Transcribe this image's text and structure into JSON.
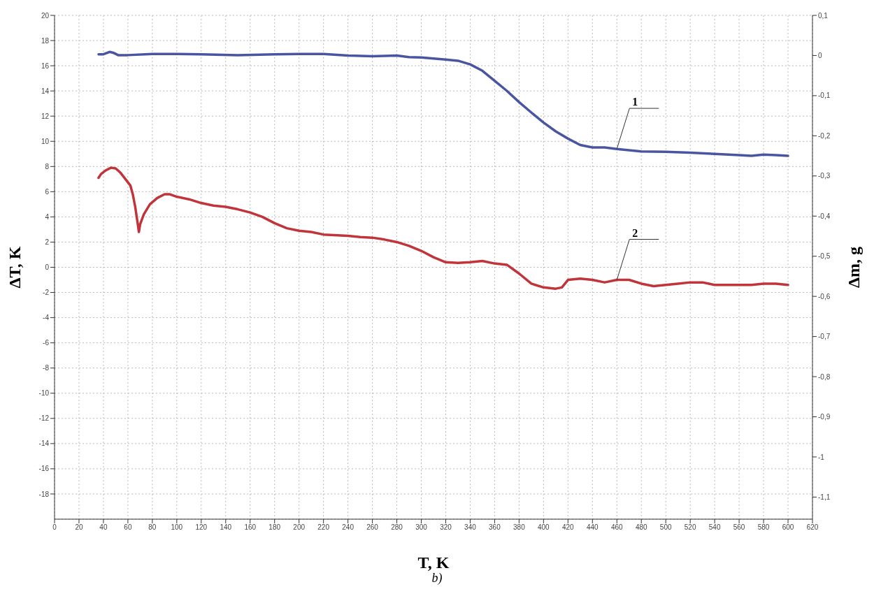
{
  "chart_data": {
    "type": "line",
    "xlabel": "T, K",
    "ylabel": "ΔT, K",
    "y2label": "Δm, g",
    "xlim": [
      0,
      620
    ],
    "xticks": [
      0,
      20,
      40,
      60,
      80,
      100,
      120,
      140,
      160,
      180,
      200,
      220,
      240,
      260,
      280,
      300,
      320,
      340,
      360,
      380,
      400,
      420,
      440,
      460,
      480,
      500,
      520,
      540,
      560,
      580,
      600,
      620
    ],
    "ylim": [
      -20,
      20
    ],
    "yticks": [
      20,
      18,
      16,
      14,
      12,
      10,
      8,
      6,
      4,
      2,
      0,
      -2,
      -4,
      -6,
      -8,
      -10,
      -12,
      -14,
      -16,
      -18
    ],
    "y2lim": [
      -1.155,
      0.1
    ],
    "y2ticks": [
      {
        "value": 0.1,
        "label": "0,1"
      },
      0,
      {
        "value": -0.1,
        "label": "-0,1"
      },
      {
        "value": -0.2,
        "label": "-0,2"
      },
      {
        "value": -0.3,
        "label": "-0,3"
      },
      {
        "value": -0.4,
        "label": "-0,4"
      },
      {
        "value": -0.5,
        "label": "-0,5"
      },
      {
        "value": -0.6,
        "label": "-0,6"
      },
      {
        "value": -0.7,
        "label": "-0,7"
      },
      {
        "value": -0.8,
        "label": "-0,8"
      },
      {
        "value": -0.9,
        "label": "-0,9"
      },
      -1,
      {
        "value": -1.1,
        "label": "-1,1"
      }
    ],
    "grid": true,
    "line_style": "solid",
    "marker": "none",
    "series": [
      {
        "color": "#4a55a2",
        "axis": "y2",
        "x": [
          36,
          40,
          45,
          48,
          52,
          60,
          80,
          100,
          120,
          150,
          180,
          200,
          220,
          240,
          260,
          280,
          290,
          300,
          320,
          330,
          340,
          350,
          360,
          370,
          380,
          390,
          400,
          410,
          420,
          430,
          440,
          450,
          460,
          470,
          480,
          500,
          520,
          540,
          560,
          570,
          580,
          590,
          600
        ],
        "values": [
          0.003,
          0.003,
          0.009,
          0.007,
          0.001,
          0.001,
          0.004,
          0.004,
          0.003,
          0.001,
          0.003,
          0.004,
          0.004,
          0.0,
          -0.002,
          0.0,
          -0.004,
          -0.005,
          -0.01,
          -0.013,
          -0.022,
          -0.038,
          -0.063,
          -0.088,
          -0.116,
          -0.142,
          -0.167,
          -0.189,
          -0.207,
          -0.223,
          -0.229,
          -0.229,
          -0.233,
          -0.236,
          -0.239,
          -0.24,
          -0.242,
          -0.245,
          -0.248,
          -0.25,
          -0.247,
          -0.248,
          -0.25
        ]
      },
      {
        "color": "#c0343a",
        "x": [
          36,
          38,
          42,
          46,
          50,
          54,
          58,
          62,
          64,
          66,
          68,
          69,
          70,
          73,
          78,
          84,
          90,
          94,
          100,
          110,
          120,
          130,
          140,
          150,
          160,
          170,
          180,
          190,
          200,
          210,
          220,
          240,
          250,
          260,
          270,
          280,
          290,
          300,
          310,
          320,
          330,
          340,
          350,
          360,
          370,
          380,
          390,
          400,
          410,
          415,
          420,
          430,
          440,
          450,
          460,
          470,
          480,
          490,
          500,
          510,
          520,
          530,
          540,
          560,
          570,
          580,
          590,
          600
        ],
        "values": [
          7.1,
          7.4,
          7.7,
          7.9,
          7.85,
          7.5,
          7.0,
          6.5,
          5.8,
          4.8,
          3.5,
          2.8,
          3.4,
          4.2,
          5.0,
          5.5,
          5.8,
          5.8,
          5.6,
          5.4,
          5.1,
          4.9,
          4.8,
          4.6,
          4.35,
          4.0,
          3.5,
          3.1,
          2.9,
          2.8,
          2.6,
          2.5,
          2.4,
          2.35,
          2.2,
          2.0,
          1.7,
          1.3,
          0.8,
          0.4,
          0.35,
          0.4,
          0.5,
          0.3,
          0.2,
          -0.5,
          -1.3,
          -1.6,
          -1.7,
          -1.6,
          -1.0,
          -0.9,
          -1.0,
          -1.2,
          -1.0,
          -1.0,
          -1.3,
          -1.5,
          -1.4,
          -1.3,
          -1.2,
          -1.2,
          -1.4,
          -1.4,
          -1.4,
          -1.3,
          -1.3,
          -1.4
        ]
      }
    ],
    "annotations": [
      {
        "text": "1",
        "x": 460,
        "y": 9.4
      },
      {
        "text": "2",
        "x": 460,
        "y": -1.0
      },
      "b)"
    ]
  }
}
